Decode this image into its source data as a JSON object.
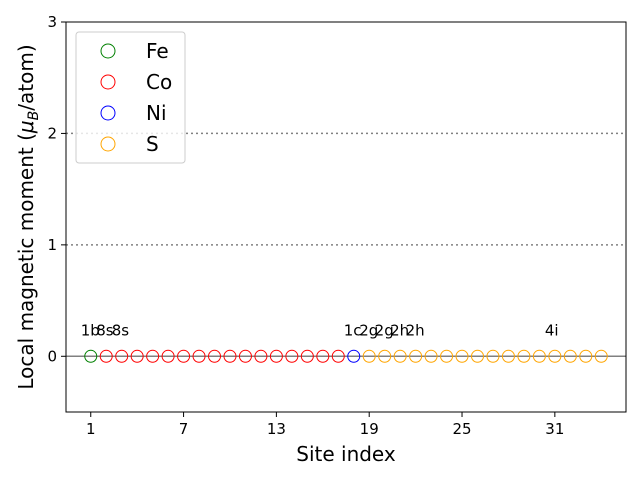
{
  "chart_data": {
    "type": "scatter",
    "xlabel": "Site index",
    "ylabel_prefix": "Local magnetic moment (",
    "ylabel_mu": "μ",
    "ylabel_sub": "B",
    "ylabel_suffix": "/atom)",
    "xlim": [
      -0.6,
      35.6
    ],
    "ylim": [
      -0.5,
      3
    ],
    "x_ticks": [
      1,
      7,
      13,
      19,
      25,
      31
    ],
    "y_ticks": [
      0,
      1,
      2,
      3
    ],
    "hlines": [
      1,
      2
    ],
    "baseline": 0,
    "legend_position": "upper-left",
    "series": [
      {
        "name": "Fe",
        "color": "#008000",
        "x": [
          1
        ],
        "y": [
          0
        ]
      },
      {
        "name": "Co",
        "color": "#ff0000",
        "x": [
          2,
          3,
          4,
          5,
          6,
          7,
          8,
          9,
          10,
          11,
          12,
          13,
          14,
          15,
          16,
          17
        ],
        "y": [
          0,
          0,
          0,
          0,
          0,
          0,
          0,
          0,
          0,
          0,
          0,
          0,
          0,
          0,
          0,
          0
        ]
      },
      {
        "name": "Ni",
        "color": "#0000ff",
        "x": [
          18
        ],
        "y": [
          0
        ]
      },
      {
        "name": "S",
        "color": "#ffa500",
        "x": [
          19,
          20,
          21,
          22,
          23,
          24,
          25,
          26,
          27,
          28,
          29,
          30,
          31,
          32,
          33,
          34
        ],
        "y": [
          0,
          0,
          0,
          0,
          0,
          0,
          0,
          0,
          0,
          0,
          0,
          0,
          0,
          0,
          0,
          0
        ]
      }
    ],
    "annotations": [
      {
        "text": "1b",
        "x": 1,
        "y": 0.25
      },
      {
        "text": "8s",
        "x": 2,
        "y": 0.25
      },
      {
        "text": "8s",
        "x": 3,
        "y": 0.25
      },
      {
        "text": "1c",
        "x": 18,
        "y": 0.25
      },
      {
        "text": "2g",
        "x": 19,
        "y": 0.25
      },
      {
        "text": "2g",
        "x": 20,
        "y": 0.25
      },
      {
        "text": "2h",
        "x": 21,
        "y": 0.25
      },
      {
        "text": "2h",
        "x": 22,
        "y": 0.25
      },
      {
        "text": "4i",
        "x": 31,
        "y": 0.25
      }
    ]
  }
}
